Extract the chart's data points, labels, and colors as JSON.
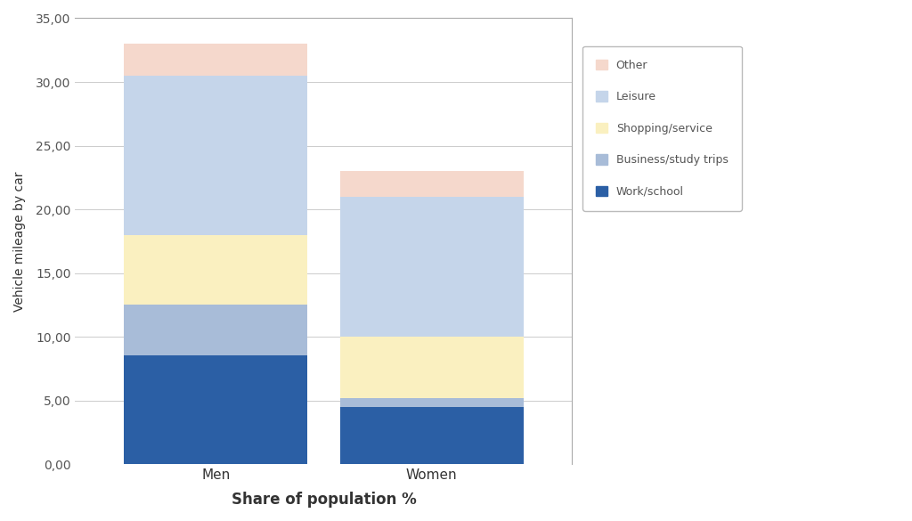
{
  "categories": [
    "Men",
    "Women"
  ],
  "series": {
    "Work/school": [
      8.5,
      4.5
    ],
    "Business/study trips": [
      4.0,
      0.7
    ],
    "Shopping/service": [
      5.5,
      4.8
    ],
    "Leisure": [
      12.5,
      11.0
    ],
    "Other": [
      2.5,
      2.0
    ]
  },
  "colors": {
    "Work/school": "#2b5fa5",
    "Business/study trips": "#a8bcd8",
    "Shopping/service": "#faf0c0",
    "Leisure": "#c5d5ea",
    "Other": "#f5d8cc"
  },
  "legend_order": [
    "Other",
    "Leisure",
    "Shopping/service",
    "Business/study trips",
    "Work/school"
  ],
  "ylabel": "Vehicle mileage by car",
  "xlabel": "Share of population %",
  "ylim": [
    0,
    35
  ],
  "yticks": [
    0,
    5,
    10,
    15,
    20,
    25,
    30,
    35
  ],
  "ytick_labels": [
    "0,00",
    "5,00",
    "10,00",
    "15,00",
    "20,00",
    "25,00",
    "30,00",
    "35,00"
  ],
  "bar_width": 0.85,
  "figsize": [
    10.24,
    5.85
  ],
  "dpi": 100,
  "background_color": "#ffffff",
  "grid_color": "#cccccc",
  "legend_fontsize": 9,
  "axis_fontsize": 10,
  "tick_fontsize": 10
}
